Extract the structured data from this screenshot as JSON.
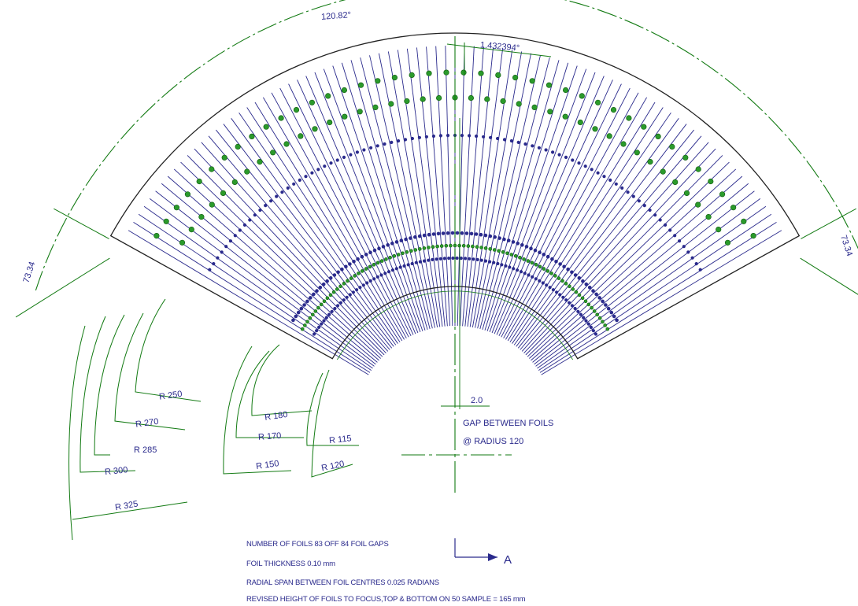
{
  "dimensions": {
    "outer_arc_angle": "120.82°",
    "foil_pitch_angle": "1.432394°",
    "left_end_length": "73.34",
    "right_end_length": "73.34",
    "gap_dim": "2.0",
    "gap_note_line1": "GAP BETWEEN FOILS",
    "gap_note_line2": "@ RADIUS 120"
  },
  "radii": [
    {
      "label": "R 250",
      "value": 250
    },
    {
      "label": "R 270",
      "value": 270
    },
    {
      "label": "R 285",
      "value": 285
    },
    {
      "label": "R 300",
      "value": 300
    },
    {
      "label": "R 325",
      "value": 325
    },
    {
      "label": "R 180",
      "value": 180
    },
    {
      "label": "R 170",
      "value": 170
    },
    {
      "label": "R 150",
      "value": 150
    },
    {
      "label": "R 115",
      "value": 115
    },
    {
      "label": "R 120",
      "value": 120
    }
  ],
  "view_marker": "A",
  "notes": [
    "NUMBER OF FOILS 83 OFF 84 FOIL GAPS",
    "FOIL THICKNESS 0.10 mm",
    "RADIAL SPAN BETWEEN FOIL CENTRES 0.025 RADIANS",
    "REVISED HEIGHT OF FOILS TO FOCUS,TOP & BOTTOM ON 50 SAMPLE = 165 mm"
  ],
  "colors": {
    "foil": "#2a2a8c",
    "dimension": "#127a12",
    "outline": "#222222",
    "green_dot": "#2b9a2b"
  },
  "foil_count": 83
}
